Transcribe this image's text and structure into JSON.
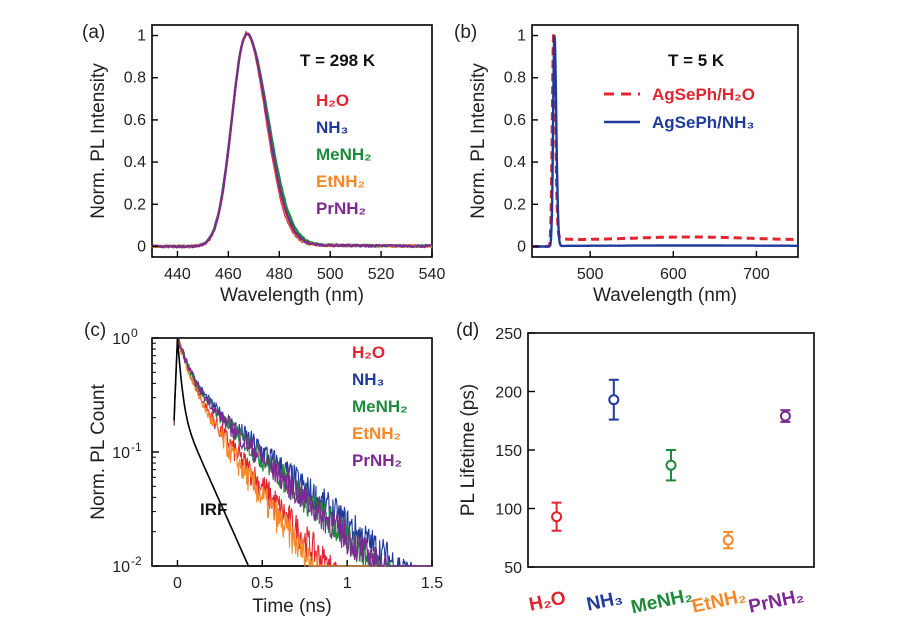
{
  "colors": {
    "H2O": "#e02530",
    "NH3": "#1f3a9a",
    "MeNH2": "#1f8a3c",
    "EtNH2": "#f5892a",
    "PrNH2": "#7a2a90",
    "IRF": "#000000"
  },
  "chart_data": [
    {
      "panel": "(a)",
      "type": "line",
      "xlabel": "Wavelength (nm)",
      "ylabel": "Norm. PL Intensity",
      "xlim": [
        430,
        540
      ],
      "ylim": [
        -0.05,
        1.05
      ],
      "xticks": [
        440,
        460,
        480,
        500,
        520,
        540
      ],
      "yticks": [
        0,
        0.2,
        0.4,
        0.6,
        0.8,
        1
      ],
      "ytick_labels": [
        "0",
        "0.2",
        "0.4",
        "0.6",
        "0.8",
        "1"
      ],
      "annotation": "T = 298 K",
      "peak_nm": 467,
      "series": [
        {
          "name": "H₂O",
          "key": "H2O",
          "sigma_left": 5.6,
          "sigma_right": 7.8
        },
        {
          "name": "NH₃",
          "key": "NH3",
          "sigma_left": 5.6,
          "sigma_right": 8.2
        },
        {
          "name": "MeNH₂",
          "key": "MeNH2",
          "sigma_left": 5.7,
          "sigma_right": 8.6
        },
        {
          "name": "EtNH₂",
          "key": "EtNH2",
          "sigma_left": 5.6,
          "sigma_right": 8.0
        },
        {
          "name": "PrNH₂",
          "key": "PrNH2",
          "sigma_left": 5.6,
          "sigma_right": 8.1
        }
      ]
    },
    {
      "panel": "(b)",
      "type": "line",
      "xlabel": "Wavelength (nm)",
      "ylabel": "Norm. PL Intensity",
      "xlim": [
        430,
        750
      ],
      "ylim": [
        -0.05,
        1.05
      ],
      "xticks": [
        500,
        600,
        700
      ],
      "yticks": [
        0,
        0.2,
        0.4,
        0.6,
        0.8,
        1
      ],
      "ytick_labels": [
        "0",
        "0.2",
        "0.4",
        "0.6",
        "0.8",
        "1"
      ],
      "annotation": "T = 5 K",
      "series": [
        {
          "name": "AgSePh/H₂O",
          "key": "H2O",
          "style": "dashed",
          "peak_nm": 456,
          "background": 0.03
        },
        {
          "name": "AgSePh/NH₃",
          "key": "NH3",
          "style": "solid",
          "peak_nm": 457,
          "background": 0.003
        }
      ]
    },
    {
      "panel": "(c)",
      "type": "line",
      "yscale": "log",
      "xlabel": "Time (ns)",
      "ylabel": "Norm. PL Count",
      "xlim": [
        -0.15,
        1.5
      ],
      "ylim": [
        0.01,
        1
      ],
      "xticks": [
        0,
        0.5,
        1,
        1.5
      ],
      "xtick_labels": [
        "0",
        "0.5",
        "1",
        "1.5"
      ],
      "ytick_labels": [
        "10",
        "10",
        "10"
      ],
      "ytick_exponents": [
        "-2",
        "-1",
        "0"
      ],
      "ytick_values": [
        0.01,
        0.1,
        1
      ],
      "series": [
        {
          "name": "H₂O",
          "key": "H2O",
          "tau_ns": 0.22
        },
        {
          "name": "NH₃",
          "key": "NH3",
          "tau_ns": 0.33
        },
        {
          "name": "MeNH₂",
          "key": "MeNH2",
          "tau_ns": 0.3
        },
        {
          "name": "EtNH₂",
          "key": "EtNH2",
          "tau_ns": 0.2
        },
        {
          "name": "PrNH₂",
          "key": "PrNH2",
          "tau_ns": 0.3
        },
        {
          "name": "IRF",
          "key": "IRF",
          "tau_ns": 0.13
        }
      ]
    },
    {
      "panel": "(d)",
      "type": "scatter",
      "ylabel": "PL Lifetime (ps)",
      "ylim": [
        50,
        250
      ],
      "yticks": [
        50,
        100,
        150,
        200,
        250
      ],
      "categories": [
        {
          "label": "H₂O",
          "key": "H2O",
          "value": 93,
          "err": 12
        },
        {
          "label": "NH₃",
          "key": "NH3",
          "value": 193,
          "err": 17
        },
        {
          "label": "MeNH₂",
          "key": "MeNH2",
          "value": 137,
          "err": 13
        },
        {
          "label": "EtNH₂",
          "key": "EtNH2",
          "value": 73,
          "err": 7
        },
        {
          "label": "PrNH₂",
          "key": "PrNH2",
          "value": 179,
          "err": 5
        }
      ]
    }
  ]
}
